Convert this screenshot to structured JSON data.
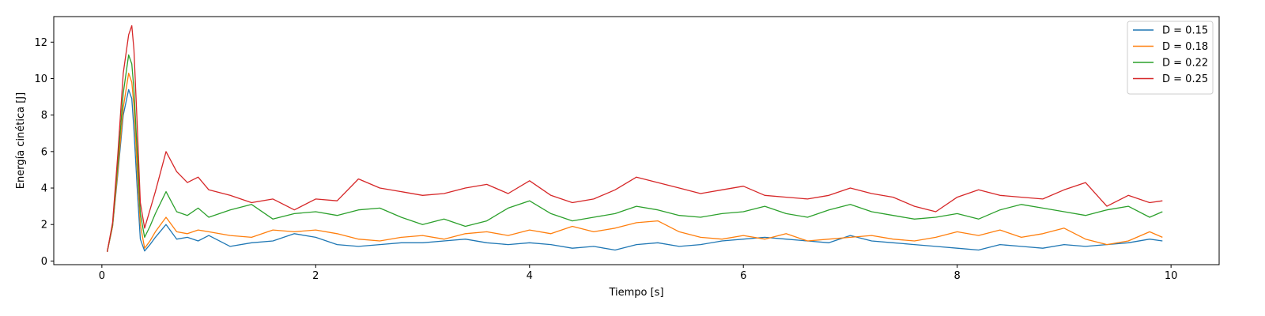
{
  "chart_data": {
    "type": "line",
    "xlabel": "Tiempo [s]",
    "ylabel": "Energía cinética [J]",
    "xlim": [
      -0.45,
      10.45
    ],
    "ylim": [
      -0.2,
      13.4
    ],
    "xticks": [
      0,
      2,
      4,
      6,
      8,
      10
    ],
    "yticks": [
      0,
      2,
      4,
      6,
      8,
      10,
      12
    ],
    "grid": false,
    "legend_position": "top-right",
    "x": [
      0.05,
      0.1,
      0.15,
      0.2,
      0.25,
      0.28,
      0.3,
      0.33,
      0.36,
      0.4,
      0.45,
      0.5,
      0.6,
      0.7,
      0.8,
      0.9,
      1.0,
      1.2,
      1.4,
      1.6,
      1.8,
      2.0,
      2.2,
      2.4,
      2.6,
      2.8,
      3.0,
      3.2,
      3.4,
      3.6,
      3.8,
      4.0,
      4.2,
      4.4,
      4.6,
      4.8,
      5.0,
      5.2,
      5.4,
      5.6,
      5.8,
      6.0,
      6.2,
      6.4,
      6.6,
      6.8,
      7.0,
      7.2,
      7.4,
      7.6,
      7.8,
      8.0,
      8.2,
      8.4,
      8.6,
      8.8,
      9.0,
      9.2,
      9.4,
      9.6,
      9.8,
      9.92
    ],
    "series": [
      {
        "name": "D = 0.15",
        "color": "#1f77b4",
        "values": [
          0.5,
          1.9,
          4.8,
          8.0,
          9.4,
          8.9,
          7.2,
          4.0,
          1.2,
          0.55,
          0.9,
          1.3,
          2.0,
          1.2,
          1.3,
          1.1,
          1.4,
          0.8,
          1.0,
          1.1,
          1.5,
          1.3,
          0.9,
          0.8,
          0.9,
          1.0,
          1.0,
          1.1,
          1.2,
          1.0,
          0.9,
          1.0,
          0.9,
          0.7,
          0.8,
          0.6,
          0.9,
          1.0,
          0.8,
          0.9,
          1.1,
          1.2,
          1.3,
          1.2,
          1.1,
          1.0,
          1.4,
          1.1,
          1.0,
          0.9,
          0.8,
          0.7,
          0.6,
          0.9,
          0.8,
          0.7,
          0.9,
          0.8,
          0.9,
          1.0,
          1.2,
          1.1
        ]
      },
      {
        "name": "D = 0.18",
        "color": "#ff7f0e",
        "values": [
          0.5,
          1.9,
          5.0,
          8.4,
          10.3,
          9.8,
          8.5,
          5.0,
          2.0,
          0.7,
          1.1,
          1.6,
          2.4,
          1.6,
          1.5,
          1.7,
          1.6,
          1.4,
          1.3,
          1.7,
          1.6,
          1.7,
          1.5,
          1.2,
          1.1,
          1.3,
          1.4,
          1.2,
          1.5,
          1.6,
          1.4,
          1.7,
          1.5,
          1.9,
          1.6,
          1.8,
          2.1,
          2.2,
          1.6,
          1.3,
          1.2,
          1.4,
          1.2,
          1.5,
          1.1,
          1.2,
          1.3,
          1.4,
          1.2,
          1.1,
          1.3,
          1.6,
          1.4,
          1.7,
          1.3,
          1.5,
          1.8,
          1.2,
          0.9,
          1.1,
          1.6,
          1.3
        ]
      },
      {
        "name": "D = 0.22",
        "color": "#2ca02c",
        "values": [
          0.5,
          2.0,
          5.4,
          9.2,
          11.3,
          10.8,
          9.4,
          6.0,
          2.6,
          1.3,
          1.9,
          2.6,
          3.8,
          2.7,
          2.5,
          2.9,
          2.4,
          2.8,
          3.1,
          2.3,
          2.6,
          2.7,
          2.5,
          2.8,
          2.9,
          2.4,
          2.0,
          2.3,
          1.9,
          2.2,
          2.9,
          3.3,
          2.6,
          2.2,
          2.4,
          2.6,
          3.0,
          2.8,
          2.5,
          2.4,
          2.6,
          2.7,
          3.0,
          2.6,
          2.4,
          2.8,
          3.1,
          2.7,
          2.5,
          2.3,
          2.4,
          2.6,
          2.3,
          2.8,
          3.1,
          2.9,
          2.7,
          2.5,
          2.8,
          3.0,
          2.4,
          2.7
        ]
      },
      {
        "name": "D = 0.25",
        "color": "#d62728",
        "values": [
          0.5,
          2.1,
          5.9,
          10.3,
          12.4,
          12.9,
          11.6,
          7.5,
          3.2,
          1.8,
          2.8,
          3.8,
          6.0,
          4.9,
          4.3,
          4.6,
          3.9,
          3.6,
          3.2,
          3.4,
          2.8,
          3.4,
          3.3,
          4.5,
          4.0,
          3.8,
          3.6,
          3.7,
          4.0,
          4.2,
          3.7,
          4.4,
          3.6,
          3.2,
          3.4,
          3.9,
          4.6,
          4.3,
          4.0,
          3.7,
          3.9,
          4.1,
          3.6,
          3.5,
          3.4,
          3.6,
          4.0,
          3.7,
          3.5,
          3.0,
          2.7,
          3.5,
          3.9,
          3.6,
          3.5,
          3.4,
          3.9,
          4.3,
          3.0,
          3.6,
          3.2,
          3.3
        ]
      }
    ]
  }
}
